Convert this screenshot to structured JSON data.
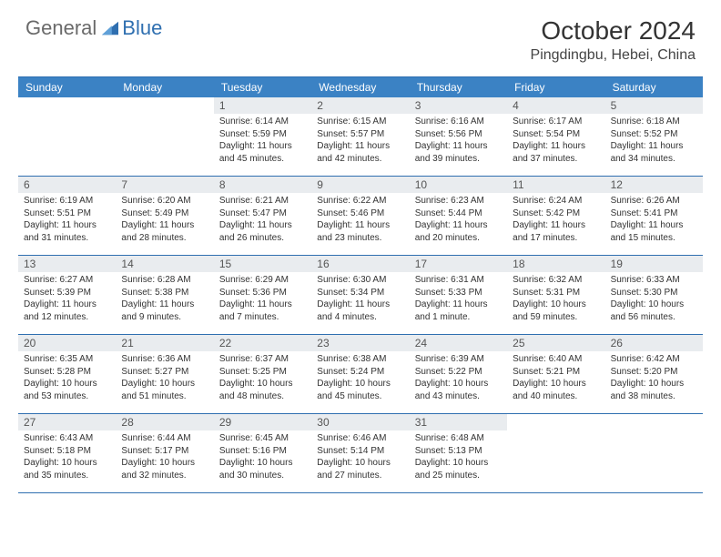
{
  "logo": {
    "text1": "General",
    "text2": "Blue"
  },
  "header": {
    "month": "October 2024",
    "location": "Pingdingbu, Hebei, China"
  },
  "colors": {
    "brand_blue": "#2f6fb0",
    "header_blue": "#3b82c4",
    "daynum_bg": "#e9ecef",
    "text": "#333333",
    "logo_gray": "#6a6a6a"
  },
  "weekdays": [
    "Sunday",
    "Monday",
    "Tuesday",
    "Wednesday",
    "Thursday",
    "Friday",
    "Saturday"
  ],
  "weeks": [
    [
      {
        "blank": true
      },
      {
        "blank": true
      },
      {
        "n": "1",
        "sr": "6:14 AM",
        "ss": "5:59 PM",
        "dl": "11 hours and 45 minutes."
      },
      {
        "n": "2",
        "sr": "6:15 AM",
        "ss": "5:57 PM",
        "dl": "11 hours and 42 minutes."
      },
      {
        "n": "3",
        "sr": "6:16 AM",
        "ss": "5:56 PM",
        "dl": "11 hours and 39 minutes."
      },
      {
        "n": "4",
        "sr": "6:17 AM",
        "ss": "5:54 PM",
        "dl": "11 hours and 37 minutes."
      },
      {
        "n": "5",
        "sr": "6:18 AM",
        "ss": "5:52 PM",
        "dl": "11 hours and 34 minutes."
      }
    ],
    [
      {
        "n": "6",
        "sr": "6:19 AM",
        "ss": "5:51 PM",
        "dl": "11 hours and 31 minutes."
      },
      {
        "n": "7",
        "sr": "6:20 AM",
        "ss": "5:49 PM",
        "dl": "11 hours and 28 minutes."
      },
      {
        "n": "8",
        "sr": "6:21 AM",
        "ss": "5:47 PM",
        "dl": "11 hours and 26 minutes."
      },
      {
        "n": "9",
        "sr": "6:22 AM",
        "ss": "5:46 PM",
        "dl": "11 hours and 23 minutes."
      },
      {
        "n": "10",
        "sr": "6:23 AM",
        "ss": "5:44 PM",
        "dl": "11 hours and 20 minutes."
      },
      {
        "n": "11",
        "sr": "6:24 AM",
        "ss": "5:42 PM",
        "dl": "11 hours and 17 minutes."
      },
      {
        "n": "12",
        "sr": "6:26 AM",
        "ss": "5:41 PM",
        "dl": "11 hours and 15 minutes."
      }
    ],
    [
      {
        "n": "13",
        "sr": "6:27 AM",
        "ss": "5:39 PM",
        "dl": "11 hours and 12 minutes."
      },
      {
        "n": "14",
        "sr": "6:28 AM",
        "ss": "5:38 PM",
        "dl": "11 hours and 9 minutes."
      },
      {
        "n": "15",
        "sr": "6:29 AM",
        "ss": "5:36 PM",
        "dl": "11 hours and 7 minutes."
      },
      {
        "n": "16",
        "sr": "6:30 AM",
        "ss": "5:34 PM",
        "dl": "11 hours and 4 minutes."
      },
      {
        "n": "17",
        "sr": "6:31 AM",
        "ss": "5:33 PM",
        "dl": "11 hours and 1 minute."
      },
      {
        "n": "18",
        "sr": "6:32 AM",
        "ss": "5:31 PM",
        "dl": "10 hours and 59 minutes."
      },
      {
        "n": "19",
        "sr": "6:33 AM",
        "ss": "5:30 PM",
        "dl": "10 hours and 56 minutes."
      }
    ],
    [
      {
        "n": "20",
        "sr": "6:35 AM",
        "ss": "5:28 PM",
        "dl": "10 hours and 53 minutes."
      },
      {
        "n": "21",
        "sr": "6:36 AM",
        "ss": "5:27 PM",
        "dl": "10 hours and 51 minutes."
      },
      {
        "n": "22",
        "sr": "6:37 AM",
        "ss": "5:25 PM",
        "dl": "10 hours and 48 minutes."
      },
      {
        "n": "23",
        "sr": "6:38 AM",
        "ss": "5:24 PM",
        "dl": "10 hours and 45 minutes."
      },
      {
        "n": "24",
        "sr": "6:39 AM",
        "ss": "5:22 PM",
        "dl": "10 hours and 43 minutes."
      },
      {
        "n": "25",
        "sr": "6:40 AM",
        "ss": "5:21 PM",
        "dl": "10 hours and 40 minutes."
      },
      {
        "n": "26",
        "sr": "6:42 AM",
        "ss": "5:20 PM",
        "dl": "10 hours and 38 minutes."
      }
    ],
    [
      {
        "n": "27",
        "sr": "6:43 AM",
        "ss": "5:18 PM",
        "dl": "10 hours and 35 minutes."
      },
      {
        "n": "28",
        "sr": "6:44 AM",
        "ss": "5:17 PM",
        "dl": "10 hours and 32 minutes."
      },
      {
        "n": "29",
        "sr": "6:45 AM",
        "ss": "5:16 PM",
        "dl": "10 hours and 30 minutes."
      },
      {
        "n": "30",
        "sr": "6:46 AM",
        "ss": "5:14 PM",
        "dl": "10 hours and 27 minutes."
      },
      {
        "n": "31",
        "sr": "6:48 AM",
        "ss": "5:13 PM",
        "dl": "10 hours and 25 minutes."
      },
      {
        "blank": true
      },
      {
        "blank": true
      }
    ]
  ],
  "labels": {
    "sunrise": "Sunrise:",
    "sunset": "Sunset:",
    "daylight": "Daylight:"
  }
}
